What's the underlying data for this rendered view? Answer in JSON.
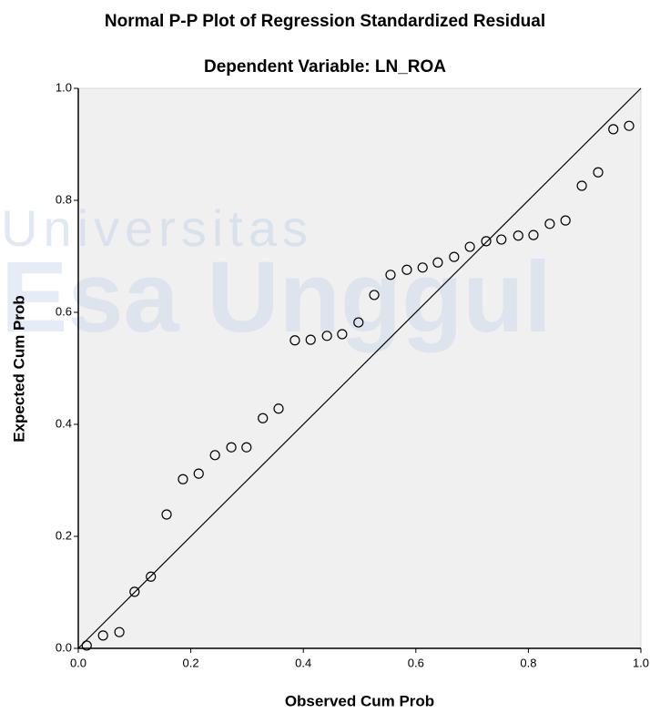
{
  "chart_data": {
    "type": "scatter",
    "title": "Normal P-P Plot of Regression Standardized Residual",
    "subtitle": "Dependent Variable: LN_ROA",
    "xlabel": "Observed Cum Prob",
    "ylabel": "Expected Cum Prob",
    "watermark": [
      "Universitas",
      "Esa Unggul"
    ],
    "x": [
      0.015,
      0.044,
      0.073,
      0.1,
      0.129,
      0.157,
      0.186,
      0.214,
      0.243,
      0.272,
      0.299,
      0.328,
      0.356,
      0.385,
      0.413,
      0.442,
      0.469,
      0.498,
      0.526,
      0.555,
      0.584,
      0.612,
      0.639,
      0.668,
      0.696,
      0.725,
      0.752,
      0.782,
      0.809,
      0.838,
      0.866,
      0.895,
      0.924,
      0.951,
      0.979
    ],
    "values": [
      0.005,
      0.023,
      0.029,
      0.101,
      0.128,
      0.239,
      0.302,
      0.312,
      0.345,
      0.359,
      0.359,
      0.411,
      0.428,
      0.55,
      0.551,
      0.558,
      0.561,
      0.582,
      0.631,
      0.667,
      0.676,
      0.68,
      0.689,
      0.699,
      0.717,
      0.727,
      0.73,
      0.737,
      0.738,
      0.758,
      0.764,
      0.826,
      0.85,
      0.927,
      0.933
    ],
    "color": "#000000",
    "xlim": [
      0,
      1
    ],
    "ylim": [
      0,
      1
    ],
    "xticks": [
      {
        "value": 0,
        "label": "0.0"
      },
      {
        "value": 0.2,
        "label": "0.2"
      },
      {
        "value": 0.4,
        "label": "0.4"
      },
      {
        "value": 0.6,
        "label": "0.6"
      },
      {
        "value": 0.8,
        "label": "0.8"
      },
      {
        "value": 1,
        "label": "1.0"
      }
    ],
    "yticks": [
      {
        "value": 0,
        "label": "0.0"
      },
      {
        "value": 0.2,
        "label": "0.2"
      },
      {
        "value": 0.4,
        "label": "0.4"
      },
      {
        "value": 0.6,
        "label": "0.6"
      },
      {
        "value": 0.8,
        "label": "0.8"
      },
      {
        "value": 1,
        "label": "1.0"
      }
    ],
    "reference_line": true,
    "grid": false
  }
}
